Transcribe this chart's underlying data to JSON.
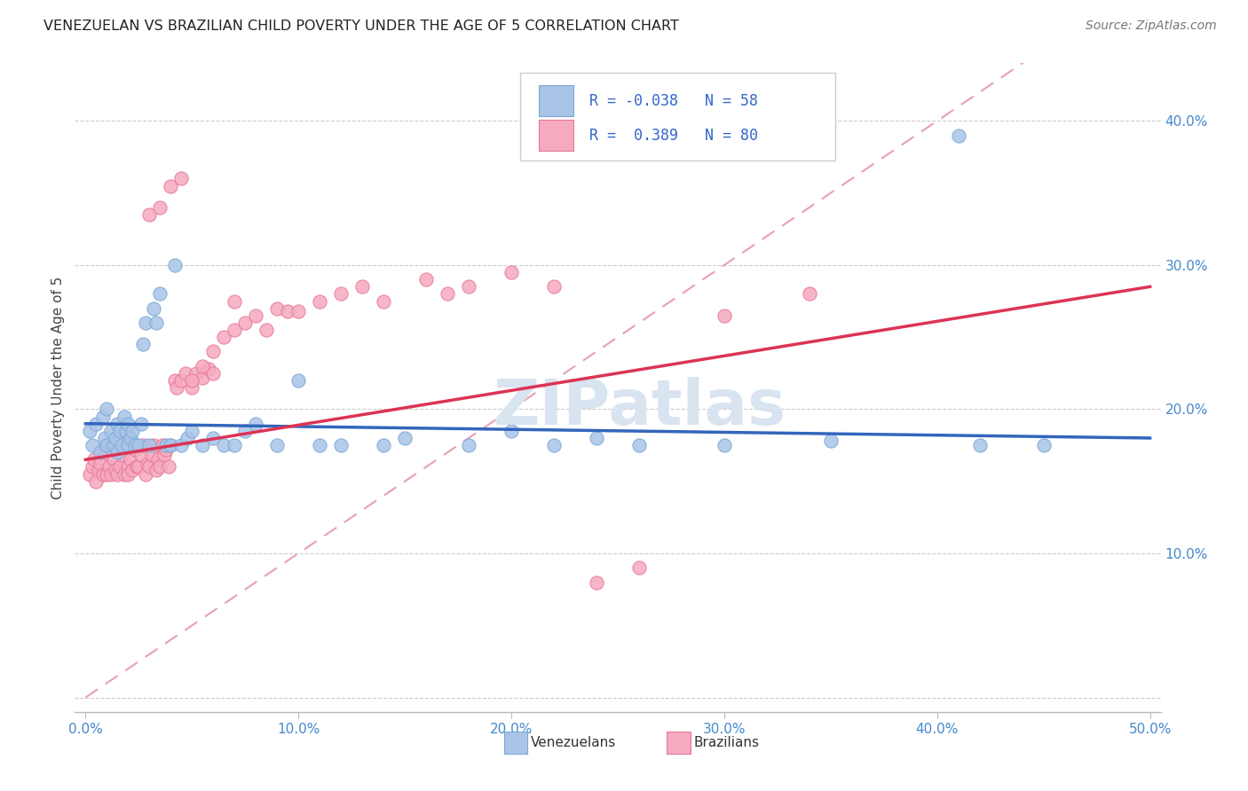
{
  "title": "VENEZUELAN VS BRAZILIAN CHILD POVERTY UNDER THE AGE OF 5 CORRELATION CHART",
  "source": "Source: ZipAtlas.com",
  "ylabel": "Child Poverty Under the Age of 5",
  "x_ticks": [
    0.0,
    0.1,
    0.2,
    0.3,
    0.4,
    0.5
  ],
  "x_tick_labels": [
    "0.0%",
    "10.0%",
    "20.0%",
    "30.0%",
    "40.0%",
    "50.0%"
  ],
  "y_ticks": [
    0.0,
    0.1,
    0.2,
    0.3,
    0.4
  ],
  "y_tick_labels": [
    "",
    "10.0%",
    "20.0%",
    "30.0%",
    "40.0%"
  ],
  "xlim": [
    -0.005,
    0.505
  ],
  "ylim": [
    -0.01,
    0.44
  ],
  "venezuelan_color": "#aac4e8",
  "venezuelan_edge": "#7aaad4",
  "brazilian_color": "#f5aabf",
  "brazilian_edge": "#e87898",
  "trend_venezuelan": "#3366bb",
  "trend_brazilian": "#dd3355",
  "trend_diagonal_color": "#e8a0b0",
  "R_venezuelan": -0.038,
  "N_venezuelan": 58,
  "R_brazilian": 0.389,
  "N_brazilian": 80,
  "watermark": "ZIPatlas",
  "watermark_color": "#d8e4f0",
  "venezuelan_scatter_x": [
    0.002,
    0.003,
    0.005,
    0.007,
    0.008,
    0.009,
    0.01,
    0.01,
    0.012,
    0.013,
    0.014,
    0.015,
    0.015,
    0.016,
    0.017,
    0.018,
    0.019,
    0.02,
    0.02,
    0.021,
    0.022,
    0.023,
    0.025,
    0.026,
    0.027,
    0.028,
    0.03,
    0.032,
    0.033,
    0.035,
    0.038,
    0.04,
    0.042,
    0.045,
    0.048,
    0.05,
    0.055,
    0.06,
    0.065,
    0.07,
    0.075,
    0.08,
    0.09,
    0.1,
    0.11,
    0.12,
    0.14,
    0.15,
    0.18,
    0.2,
    0.22,
    0.24,
    0.26,
    0.3,
    0.35,
    0.41,
    0.42,
    0.45
  ],
  "venezuelan_scatter_y": [
    0.185,
    0.175,
    0.19,
    0.17,
    0.195,
    0.18,
    0.175,
    0.2,
    0.185,
    0.175,
    0.18,
    0.19,
    0.17,
    0.185,
    0.175,
    0.195,
    0.185,
    0.175,
    0.19,
    0.18,
    0.185,
    0.175,
    0.175,
    0.19,
    0.245,
    0.26,
    0.175,
    0.27,
    0.26,
    0.28,
    0.175,
    0.175,
    0.3,
    0.175,
    0.18,
    0.185,
    0.175,
    0.18,
    0.175,
    0.175,
    0.185,
    0.19,
    0.175,
    0.22,
    0.175,
    0.175,
    0.175,
    0.18,
    0.175,
    0.185,
    0.175,
    0.18,
    0.175,
    0.175,
    0.178,
    0.39,
    0.175,
    0.175
  ],
  "brazilian_scatter_x": [
    0.002,
    0.003,
    0.004,
    0.005,
    0.006,
    0.007,
    0.008,
    0.009,
    0.01,
    0.01,
    0.011,
    0.012,
    0.013,
    0.014,
    0.015,
    0.015,
    0.016,
    0.017,
    0.018,
    0.019,
    0.02,
    0.02,
    0.021,
    0.022,
    0.023,
    0.024,
    0.025,
    0.026,
    0.027,
    0.028,
    0.029,
    0.03,
    0.031,
    0.032,
    0.033,
    0.034,
    0.035,
    0.036,
    0.037,
    0.038,
    0.039,
    0.04,
    0.042,
    0.043,
    0.045,
    0.047,
    0.05,
    0.052,
    0.055,
    0.058,
    0.06,
    0.065,
    0.07,
    0.075,
    0.08,
    0.085,
    0.09,
    0.095,
    0.1,
    0.11,
    0.12,
    0.13,
    0.14,
    0.16,
    0.17,
    0.18,
    0.2,
    0.22,
    0.24,
    0.26,
    0.03,
    0.035,
    0.04,
    0.045,
    0.05,
    0.055,
    0.06,
    0.07,
    0.34,
    0.3
  ],
  "brazilian_scatter_y": [
    0.155,
    0.16,
    0.165,
    0.15,
    0.158,
    0.162,
    0.155,
    0.17,
    0.155,
    0.175,
    0.16,
    0.155,
    0.165,
    0.158,
    0.155,
    0.172,
    0.16,
    0.168,
    0.155,
    0.175,
    0.16,
    0.155,
    0.165,
    0.158,
    0.172,
    0.16,
    0.16,
    0.168,
    0.175,
    0.155,
    0.162,
    0.16,
    0.168,
    0.175,
    0.158,
    0.165,
    0.16,
    0.175,
    0.168,
    0.172,
    0.16,
    0.175,
    0.22,
    0.215,
    0.22,
    0.225,
    0.215,
    0.225,
    0.222,
    0.228,
    0.225,
    0.25,
    0.255,
    0.26,
    0.265,
    0.255,
    0.27,
    0.268,
    0.268,
    0.275,
    0.28,
    0.285,
    0.275,
    0.29,
    0.28,
    0.285,
    0.295,
    0.285,
    0.08,
    0.09,
    0.335,
    0.34,
    0.355,
    0.36,
    0.22,
    0.23,
    0.24,
    0.275,
    0.28,
    0.265
  ],
  "ven_trend_x0": 0.0,
  "ven_trend_x1": 0.5,
  "ven_trend_y0": 0.19,
  "ven_trend_y1": 0.18,
  "bra_trend_x0": 0.0,
  "bra_trend_x1": 0.5,
  "bra_trend_y0": 0.165,
  "bra_trend_y1": 0.285
}
